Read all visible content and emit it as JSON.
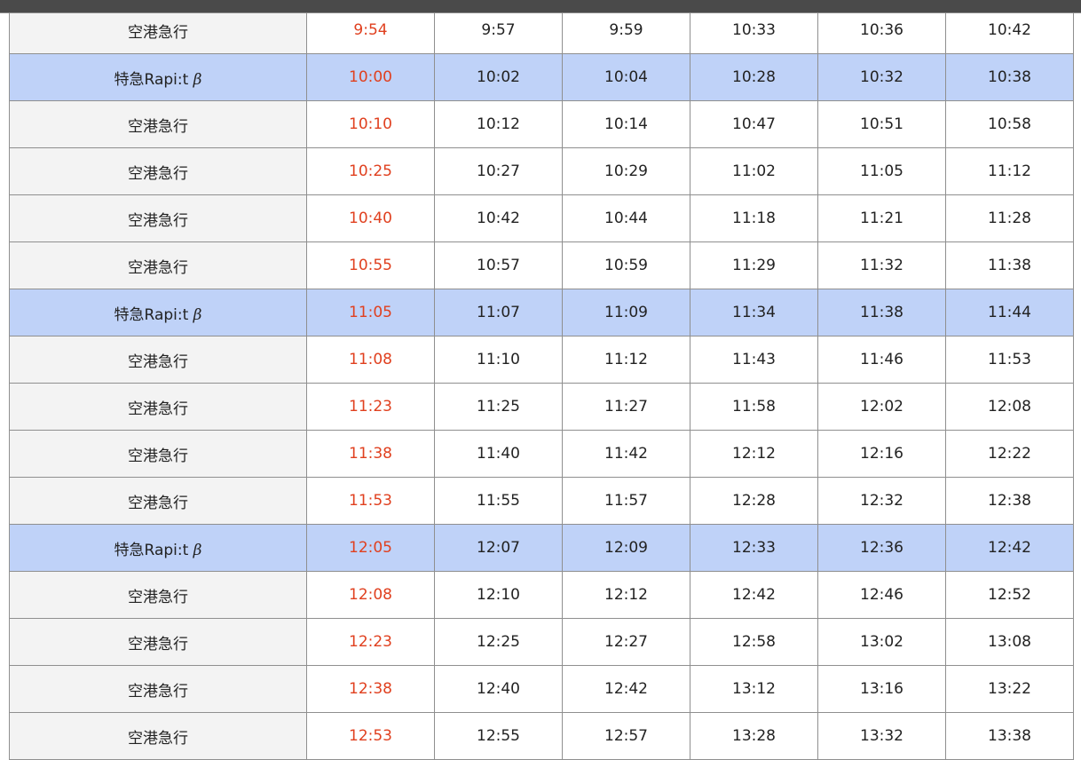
{
  "highlight_color": "#bfd2f8",
  "origin_time_color": "#e0401f",
  "rows": [
    {
      "type": "空港急行",
      "rapit": false,
      "times": [
        "9:54",
        "9:57",
        "9:59",
        "10:33",
        "10:36",
        "10:42"
      ]
    },
    {
      "type": "特急Rapi:t",
      "type_suffix": "β",
      "rapit": true,
      "times": [
        "10:00",
        "10:02",
        "10:04",
        "10:28",
        "10:32",
        "10:38"
      ]
    },
    {
      "type": "空港急行",
      "rapit": false,
      "times": [
        "10:10",
        "10:12",
        "10:14",
        "10:47",
        "10:51",
        "10:58"
      ]
    },
    {
      "type": "空港急行",
      "rapit": false,
      "times": [
        "10:25",
        "10:27",
        "10:29",
        "11:02",
        "11:05",
        "11:12"
      ]
    },
    {
      "type": "空港急行",
      "rapit": false,
      "times": [
        "10:40",
        "10:42",
        "10:44",
        "11:18",
        "11:21",
        "11:28"
      ]
    },
    {
      "type": "空港急行",
      "rapit": false,
      "times": [
        "10:55",
        "10:57",
        "10:59",
        "11:29",
        "11:32",
        "11:38"
      ]
    },
    {
      "type": "特急Rapi:t",
      "type_suffix": "β",
      "rapit": true,
      "times": [
        "11:05",
        "11:07",
        "11:09",
        "11:34",
        "11:38",
        "11:44"
      ]
    },
    {
      "type": "空港急行",
      "rapit": false,
      "times": [
        "11:08",
        "11:10",
        "11:12",
        "11:43",
        "11:46",
        "11:53"
      ]
    },
    {
      "type": "空港急行",
      "rapit": false,
      "times": [
        "11:23",
        "11:25",
        "11:27",
        "11:58",
        "12:02",
        "12:08"
      ]
    },
    {
      "type": "空港急行",
      "rapit": false,
      "times": [
        "11:38",
        "11:40",
        "11:42",
        "12:12",
        "12:16",
        "12:22"
      ]
    },
    {
      "type": "空港急行",
      "rapit": false,
      "times": [
        "11:53",
        "11:55",
        "11:57",
        "12:28",
        "12:32",
        "12:38"
      ]
    },
    {
      "type": "特急Rapi:t",
      "type_suffix": "β",
      "rapit": true,
      "times": [
        "12:05",
        "12:07",
        "12:09",
        "12:33",
        "12:36",
        "12:42"
      ]
    },
    {
      "type": "空港急行",
      "rapit": false,
      "times": [
        "12:08",
        "12:10",
        "12:12",
        "12:42",
        "12:46",
        "12:52"
      ]
    },
    {
      "type": "空港急行",
      "rapit": false,
      "times": [
        "12:23",
        "12:25",
        "12:27",
        "12:58",
        "13:02",
        "13:08"
      ]
    },
    {
      "type": "空港急行",
      "rapit": false,
      "times": [
        "12:38",
        "12:40",
        "12:42",
        "13:12",
        "13:16",
        "13:22"
      ]
    },
    {
      "type": "空港急行",
      "rapit": false,
      "times": [
        "12:53",
        "12:55",
        "12:57",
        "13:28",
        "13:32",
        "13:38"
      ]
    }
  ]
}
